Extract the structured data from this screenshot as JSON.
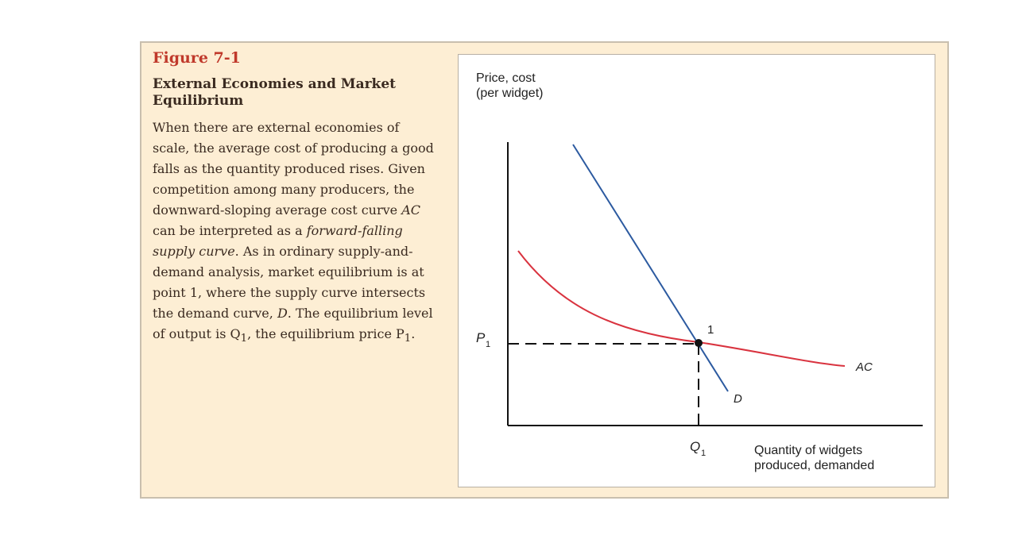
{
  "figure": {
    "number": "Figure 7-1",
    "title": "External Economies and Market Equilibrium",
    "description_parts": [
      "When there are external economies of scale, the average cost of producing a good falls as the quantity produced rises. Given competition among many producers, the downward-sloping average cost curve ",
      "AC",
      " can be interpreted as a ",
      "forward-falling supply curve",
      ". As in ordinary supply-and-demand analysis, market equilibrium is at point 1, where the supply curve intersects the demand curve, ",
      "D",
      ". The equilibrium level of output is Q",
      "1",
      ", the equilibrium price P",
      "1",
      "."
    ]
  },
  "diagram": {
    "y_axis_label_line1": "Price, cost",
    "y_axis_label_line2": "(per widget)",
    "x_axis_label_line1": "Quantity of widgets",
    "x_axis_label_line2": "produced, demanded",
    "price_label": "P",
    "price_subscript": "1",
    "quantity_label": "Q",
    "quantity_subscript": "1",
    "point_label": "1",
    "supply_curve_label": "AC",
    "demand_curve_label": "D",
    "colors": {
      "supply_curve": "#d9333f",
      "demand_curve": "#2c5aa0",
      "axes": "#111111",
      "accent_heading": "#c0392b",
      "panel_background": "#fdeed4"
    }
  }
}
